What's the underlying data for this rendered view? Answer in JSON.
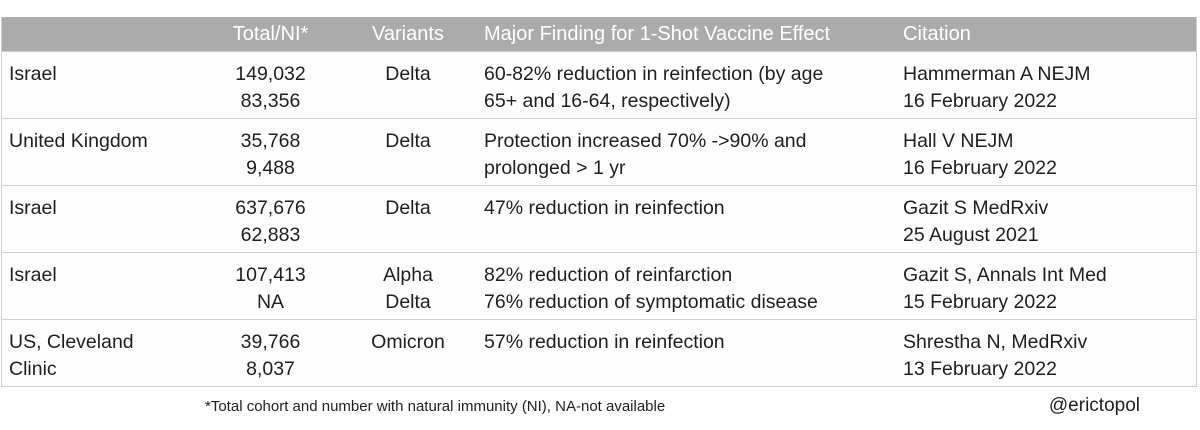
{
  "chart_data": {
    "type": "table",
    "columns": [
      "",
      "Total/NI*",
      "Variants",
      "Major Finding for 1-Shot Vaccine Effect",
      "Citation"
    ],
    "rows": [
      {
        "location": "Israel",
        "total_ni": [
          "149,032",
          "83,356"
        ],
        "variants": [
          "Delta"
        ],
        "finding": [
          "60-82% reduction in reinfection (by age",
          "65+ and 16-64, respectively)"
        ],
        "citation": [
          "Hammerman A NEJM",
          "16 February 2022"
        ]
      },
      {
        "location": "United Kingdom",
        "total_ni": [
          "35,768",
          "9,488"
        ],
        "variants": [
          "Delta"
        ],
        "finding": [
          "Protection increased 70% ->90% and",
          "prolonged > 1 yr"
        ],
        "citation": [
          "Hall V NEJM",
          "16 February 2022"
        ]
      },
      {
        "location": "Israel",
        "total_ni": [
          "637,676",
          "62,883"
        ],
        "variants": [
          "Delta"
        ],
        "finding": [
          "47% reduction in reinfection"
        ],
        "citation": [
          "Gazit S MedRxiv",
          "25 August 2021"
        ]
      },
      {
        "location": "Israel",
        "total_ni": [
          "107,413",
          "NA"
        ],
        "variants": [
          "Alpha",
          "Delta"
        ],
        "finding": [
          "82% reduction of reinfarction",
          "76% reduction of symptomatic disease"
        ],
        "citation": [
          "Gazit S, Annals Int Med",
          "15 February 2022"
        ]
      },
      {
        "location": [
          "US, Cleveland",
          "Clinic"
        ],
        "total_ni": [
          "39,766",
          "8,037"
        ],
        "variants": [
          "Omicron"
        ],
        "finding": [
          "57% reduction in reinfection"
        ],
        "citation": [
          "Shrestha N, MedRxiv",
          "13 February 2022"
        ]
      }
    ]
  },
  "footer": {
    "footnote": "*Total cohort and number with natural immunity (NI), NA-not available",
    "handle": "@erictopol"
  },
  "colors": {
    "header_bg": "#ababab",
    "header_text": "#ffffff",
    "border": "#cdcdcd",
    "text": "#1f1f1f"
  }
}
